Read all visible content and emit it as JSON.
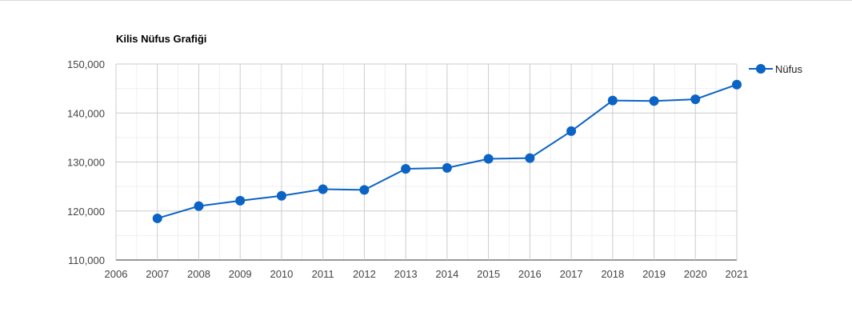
{
  "chart_data": {
    "type": "line",
    "title": "Kilis Nüfus Grafiği",
    "xlabel": "",
    "ylabel": "",
    "x": [
      2007,
      2008,
      2009,
      2010,
      2011,
      2012,
      2013,
      2014,
      2015,
      2016,
      2017,
      2018,
      2019,
      2020,
      2021
    ],
    "x_ticks": [
      "2006",
      "2007",
      "2008",
      "2009",
      "2010",
      "2011",
      "2012",
      "2013",
      "2014",
      "2015",
      "2016",
      "2017",
      "2018",
      "2019",
      "2020",
      "2021"
    ],
    "xlim": [
      2006,
      2021
    ],
    "ylim": [
      110000,
      150000
    ],
    "y_ticks": [
      "110,000",
      "120,000",
      "130,000",
      "140,000",
      "150,000"
    ],
    "grid": true,
    "legend_position": "top-right",
    "series": [
      {
        "name": "Nüfus",
        "color": "#0b63c5",
        "values": [
          118500,
          121000,
          122100,
          123100,
          124450,
          124300,
          128600,
          128800,
          130650,
          130800,
          136300,
          142550,
          142450,
          142800,
          145800
        ]
      }
    ]
  }
}
